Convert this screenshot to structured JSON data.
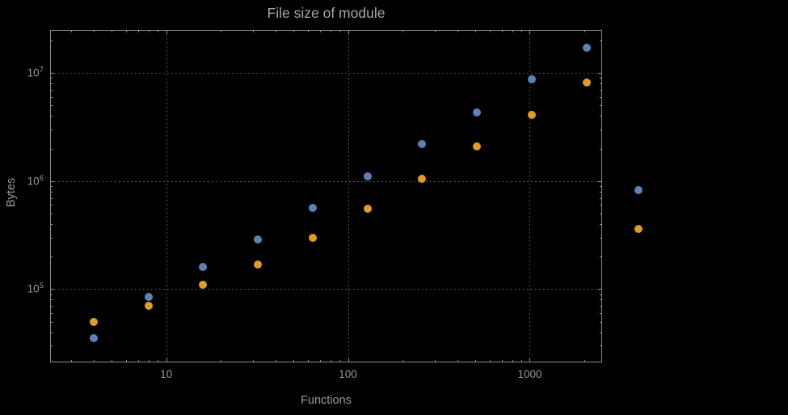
{
  "chart_data": {
    "type": "scatter",
    "title": "File size of module",
    "xlabel": "Functions",
    "ylabel": "Bytes",
    "x_scale": "log",
    "y_scale": "log",
    "grid": "dotted",
    "x": [
      4,
      8,
      16,
      32,
      64,
      128,
      256,
      512,
      1024,
      2048
    ],
    "series": [
      {
        "name": "blue",
        "color": "#5e81b5",
        "values": [
          35000,
          85000,
          160000,
          290000,
          560000,
          1100000,
          2200000,
          4300000,
          8700000,
          17000000
        ]
      },
      {
        "name": "orange",
        "color": "#e19c24",
        "values": [
          50000,
          70000,
          110000,
          170000,
          300000,
          550000,
          1050000,
          2100000,
          4100000,
          8200000
        ]
      }
    ],
    "x_ticks": [
      {
        "value": 10,
        "label": "10"
      },
      {
        "value": 100,
        "label": "100"
      },
      {
        "value": 1000,
        "label": "1000"
      }
    ],
    "y_ticks": [
      {
        "value": 100000,
        "base": "10",
        "exp": "5"
      },
      {
        "value": 1000000,
        "base": "10",
        "exp": "6"
      },
      {
        "value": 10000000,
        "base": "10",
        "exp": "7"
      }
    ],
    "xlim": [
      2.3,
      2500
    ],
    "ylim": [
      21000,
      25000000
    ],
    "legend": {
      "position": "right-outside",
      "entries": [
        {
          "series": "blue",
          "color": "#5e81b5"
        },
        {
          "series": "orange",
          "color": "#e19c24"
        }
      ]
    }
  },
  "colors": {
    "background": "#000000",
    "frame": "#8f8f8f",
    "grid": "#6a6a6a",
    "text": "#9a9a9a",
    "series_blue": "#5e81b5",
    "series_orange": "#e19c24"
  }
}
